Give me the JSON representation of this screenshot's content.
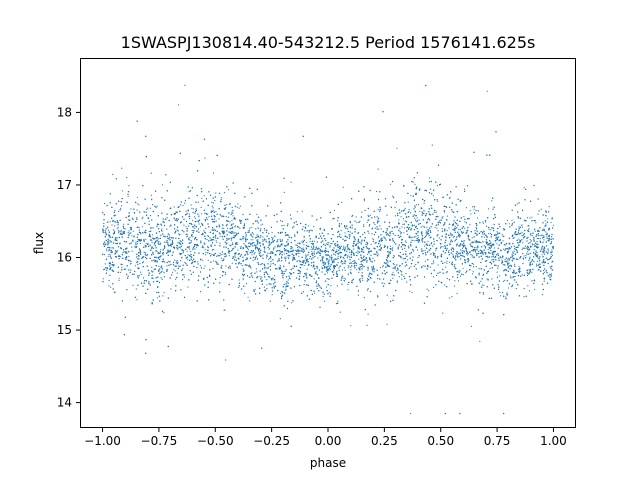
{
  "chart_data": {
    "type": "scatter",
    "title": "1SWASPJ130814.40-543212.5 Period 1576141.625s",
    "xlabel": "phase",
    "ylabel": "flux",
    "xlim": [
      -1.1,
      1.1
    ],
    "ylim": [
      13.65,
      18.75
    ],
    "grid": false,
    "legend": "none",
    "marker_color": "#1f77b4",
    "x_ticks": [
      -1.0,
      -0.75,
      -0.5,
      -0.25,
      0.0,
      0.25,
      0.5,
      0.75,
      1.0
    ],
    "x_tick_labels": [
      "−1.00",
      "−0.75",
      "−0.50",
      "−0.25",
      "0.00",
      "0.25",
      "0.50",
      "0.75",
      "1.00"
    ],
    "y_ticks": [
      14,
      15,
      16,
      17,
      18
    ],
    "y_tick_labels": [
      "14",
      "15",
      "16",
      "17",
      "18"
    ],
    "series": [
      {
        "x_range": [
          -1.0,
          1.0
        ],
        "approx_point_count": 24000,
        "approx_mean_flux": 16.15,
        "approx_flux_range": [
          13.85,
          18.5
        ],
        "approx_profile": [
          {
            "phase": -1.0,
            "mean_flux": 16.2,
            "spread": 0.6
          },
          {
            "phase": -0.9,
            "mean_flux": 16.2,
            "spread": 0.7
          },
          {
            "phase": -0.8,
            "mean_flux": 16.1,
            "spread": 0.8
          },
          {
            "phase": -0.7,
            "mean_flux": 16.15,
            "spread": 0.7
          },
          {
            "phase": -0.6,
            "mean_flux": 16.35,
            "spread": 0.75
          },
          {
            "phase": -0.5,
            "mean_flux": 16.3,
            "spread": 0.7
          },
          {
            "phase": -0.4,
            "mean_flux": 16.2,
            "spread": 0.65
          },
          {
            "phase": -0.3,
            "mean_flux": 16.05,
            "spread": 0.6
          },
          {
            "phase": -0.2,
            "mean_flux": 16.0,
            "spread": 0.6
          },
          {
            "phase": -0.1,
            "mean_flux": 16.0,
            "spread": 0.55
          },
          {
            "phase": 0.0,
            "mean_flux": 16.0,
            "spread": 0.55
          },
          {
            "phase": 0.1,
            "mean_flux": 16.05,
            "spread": 0.6
          },
          {
            "phase": 0.2,
            "mean_flux": 16.1,
            "spread": 0.7
          },
          {
            "phase": 0.3,
            "mean_flux": 16.15,
            "spread": 0.7
          },
          {
            "phase": 0.4,
            "mean_flux": 16.35,
            "spread": 0.75
          },
          {
            "phase": 0.5,
            "mean_flux": 16.3,
            "spread": 0.7
          },
          {
            "phase": 0.6,
            "mean_flux": 16.2,
            "spread": 0.65
          },
          {
            "phase": 0.7,
            "mean_flux": 16.1,
            "spread": 0.65
          },
          {
            "phase": 0.8,
            "mean_flux": 16.05,
            "spread": 0.6
          },
          {
            "phase": 0.9,
            "mean_flux": 16.1,
            "spread": 0.6
          },
          {
            "phase": 1.0,
            "mean_flux": 16.1,
            "spread": 0.6
          }
        ]
      }
    ]
  }
}
